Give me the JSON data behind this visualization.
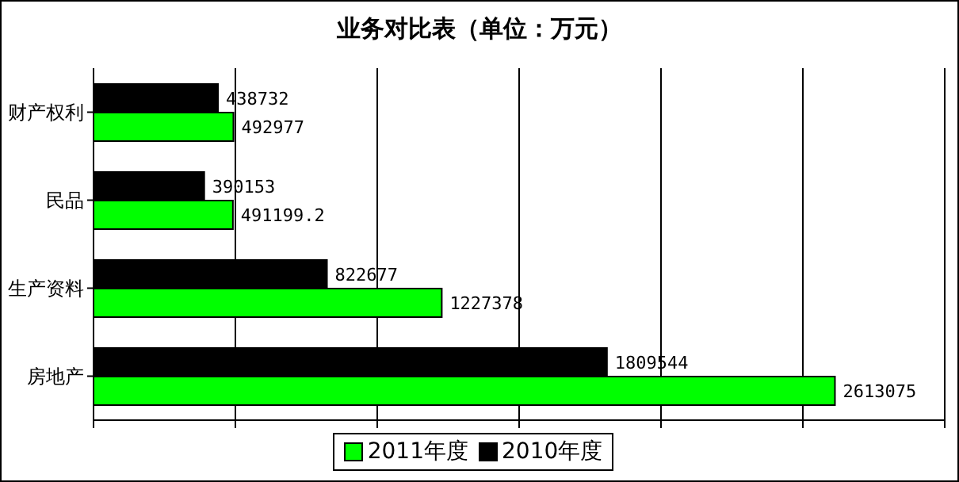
{
  "chart_data": {
    "type": "bar",
    "orientation": "horizontal",
    "title": "业务对比表（单位：万元）",
    "categories": [
      "财产权利",
      "民品",
      "生产资料",
      "房地产"
    ],
    "series": [
      {
        "name": "2010年度",
        "color": "#000000",
        "values": [
          438732,
          390153,
          822677,
          1809544
        ]
      },
      {
        "name": "2011年度",
        "color": "#00ff00",
        "values": [
          492977,
          491199.2,
          1227378,
          2613075
        ]
      }
    ],
    "xlim": [
      0,
      3000000
    ],
    "xticks": [
      {
        "value": 0,
        "label": null
      },
      {
        "value": 500000,
        "label": null
      },
      {
        "value": 1000000,
        "label": null
      },
      {
        "value": 1500000,
        "label": null
      },
      {
        "value": 2000000,
        "label": null
      },
      {
        "value": 2500000,
        "label": null
      },
      {
        "value": 3000000,
        "label": null
      }
    ],
    "grid": "x",
    "legend": "bottom",
    "data_labels": true,
    "tick_labels": "y"
  }
}
